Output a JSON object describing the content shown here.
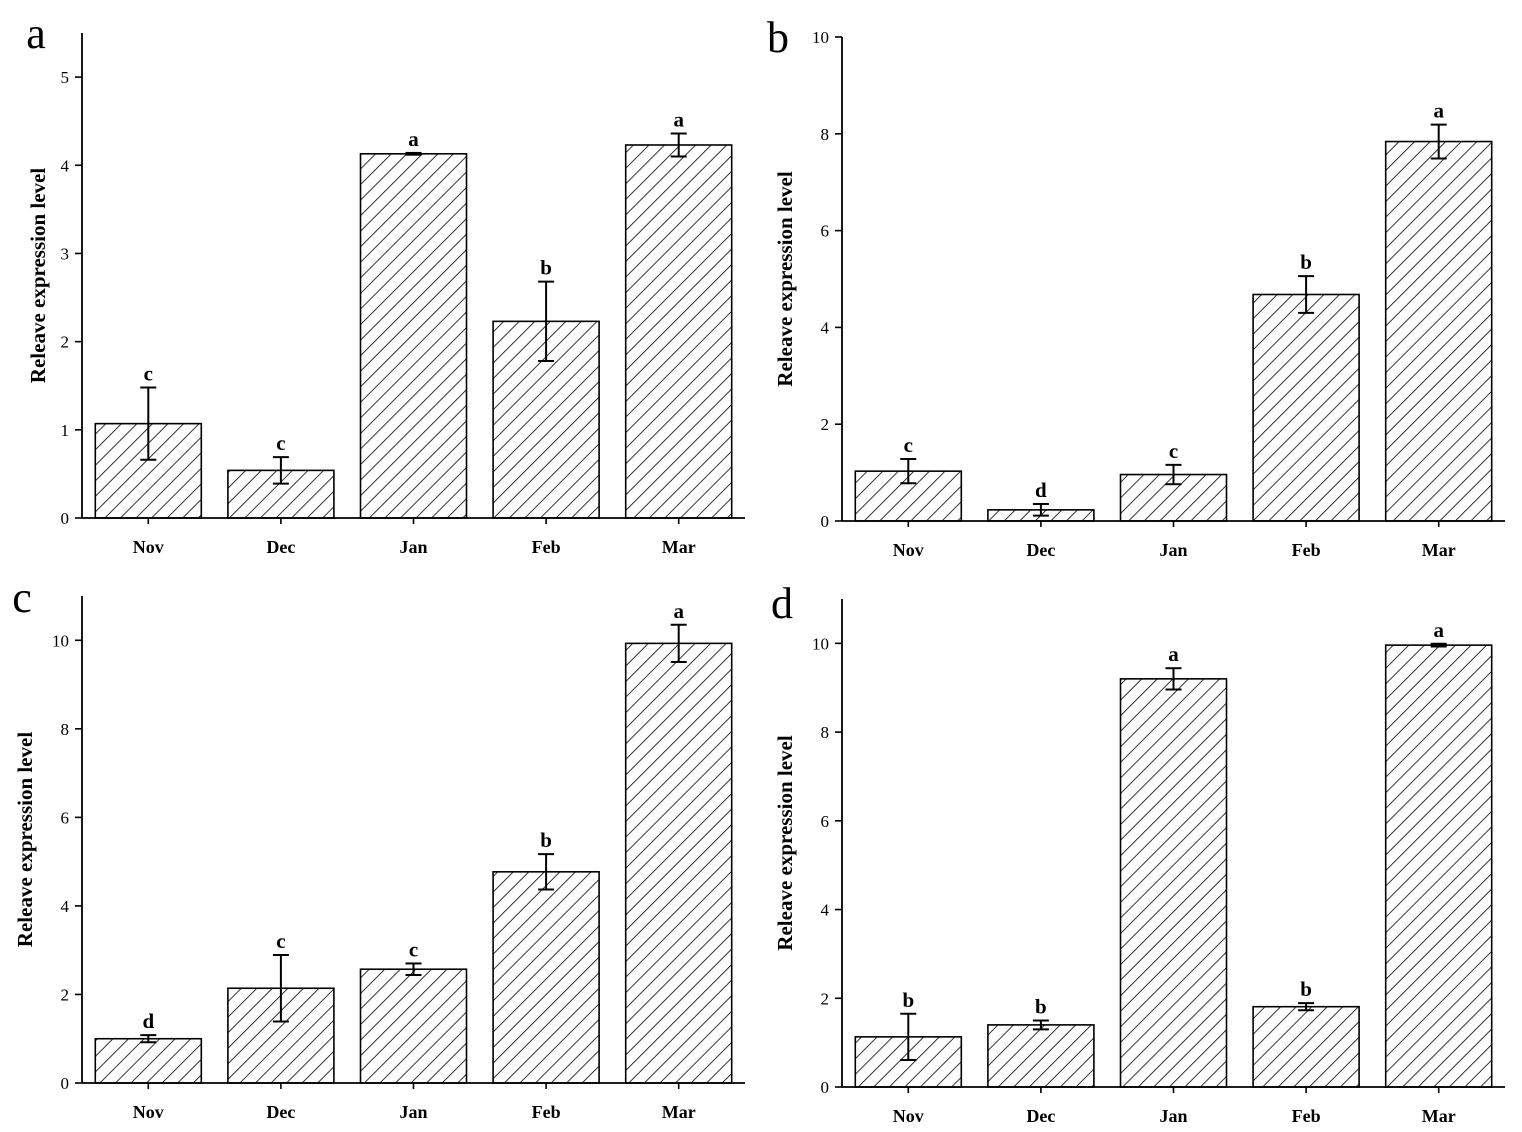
{
  "chart_data": [
    {
      "panel": "a",
      "type": "bar",
      "categories": [
        "Nov",
        "Dec",
        "Jan",
        "Feb",
        "Mar"
      ],
      "values": [
        1.07,
        0.54,
        4.13,
        2.23,
        4.23
      ],
      "errors": [
        0.41,
        0.15,
        0.01,
        0.45,
        0.13
      ],
      "significance": [
        "c",
        "c",
        "a",
        "b",
        "a"
      ],
      "ylabel": "Releave expression level",
      "xlabel": "",
      "ylim": [
        0,
        5.5
      ],
      "yticks": [
        0,
        1,
        2,
        3,
        4,
        5
      ],
      "fill": "diagonal-hatch"
    },
    {
      "panel": "b",
      "type": "bar",
      "categories": [
        "Nov",
        "Dec",
        "Jan",
        "Feb",
        "Mar"
      ],
      "values": [
        1.03,
        0.23,
        0.96,
        4.68,
        7.84
      ],
      "errors": [
        0.25,
        0.12,
        0.2,
        0.38,
        0.35
      ],
      "significance": [
        "c",
        "d",
        "c",
        "b",
        "a"
      ],
      "ylabel": "Releave expression level",
      "xlabel": "",
      "ylim": [
        0,
        10
      ],
      "yticks": [
        0,
        2,
        4,
        6,
        8,
        10
      ],
      "fill": "diagonal-hatch"
    },
    {
      "panel": "c",
      "type": "bar",
      "categories": [
        "Nov",
        "Dec",
        "Jan",
        "Feb",
        "Mar"
      ],
      "values": [
        1.0,
        2.14,
        2.57,
        4.77,
        9.93
      ],
      "errors": [
        0.08,
        0.75,
        0.13,
        0.4,
        0.42
      ],
      "significance": [
        "d",
        "c",
        "c",
        "b",
        "a"
      ],
      "ylabel": "Releave expression level",
      "xlabel": "",
      "ylim": [
        0,
        11
      ],
      "yticks": [
        0,
        2,
        4,
        6,
        8,
        10
      ],
      "fill": "diagonal-hatch"
    },
    {
      "panel": "d",
      "type": "bar",
      "categories": [
        "Nov",
        "Dec",
        "Jan",
        "Feb",
        "Mar"
      ],
      "values": [
        1.13,
        1.4,
        9.2,
        1.81,
        9.96
      ],
      "errors": [
        0.52,
        0.1,
        0.24,
        0.08,
        0.03
      ],
      "significance": [
        "b",
        "b",
        "a",
        "b",
        "a"
      ],
      "ylabel": "Releave expression level",
      "xlabel": "",
      "ylim": [
        0,
        11
      ],
      "yticks": [
        0,
        2,
        4,
        6,
        8,
        10
      ],
      "fill": "diagonal-hatch"
    }
  ]
}
